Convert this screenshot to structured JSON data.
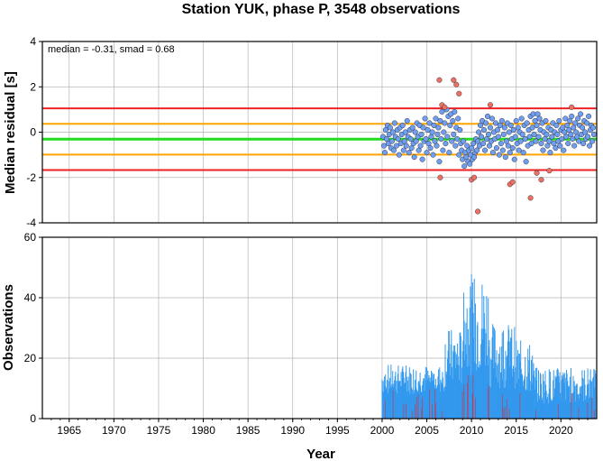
{
  "chart_data": [
    {
      "type": "scatter",
      "title": "Station YUK, phase P, 3548 observations",
      "ylabel": "Median residual [s]",
      "annotation": "median = -0.31, smad = 0.68",
      "xlim": [
        1962,
        2024
      ],
      "ylim": [
        -4,
        4
      ],
      "yticks": [
        "4",
        "2",
        "0",
        "-2",
        "-4"
      ],
      "grid": true,
      "reference_lines": [
        {
          "name": "median",
          "value": -0.31,
          "color": "#22dd22"
        },
        {
          "name": "median+smad",
          "value": 0.37,
          "color": "#ffa500"
        },
        {
          "name": "median-smad",
          "value": -0.99,
          "color": "#ffa500"
        },
        {
          "name": "median+2smad",
          "value": 1.05,
          "color": "#ee2222"
        },
        {
          "name": "median-2smad",
          "value": -1.67,
          "color": "#ee2222"
        }
      ],
      "series": [
        {
          "color": "#6f9ff0",
          "points": [
            [
              2000.1,
              -0.2
            ],
            [
              2000.2,
              -0.6
            ],
            [
              2000.3,
              -0.9
            ],
            [
              2000.4,
              0.1
            ],
            [
              2000.5,
              -0.3
            ],
            [
              2000.6,
              0.3
            ],
            [
              2000.7,
              -0.5
            ],
            [
              2000.8,
              -0.1
            ],
            [
              2000.9,
              0.2
            ],
            [
              2001.0,
              -0.7
            ],
            [
              2001.1,
              -0.4
            ],
            [
              2001.2,
              0.0
            ],
            [
              2001.3,
              -0.8
            ],
            [
              2001.4,
              0.4
            ],
            [
              2001.5,
              -0.2
            ],
            [
              2001.6,
              -0.6
            ],
            [
              2001.7,
              0.1
            ],
            [
              2001.8,
              -0.3
            ],
            [
              2001.9,
              -1.0
            ],
            [
              2002.0,
              0.2
            ],
            [
              2002.1,
              -0.5
            ],
            [
              2002.2,
              -0.1
            ],
            [
              2002.3,
              0.3
            ],
            [
              2002.4,
              -0.8
            ],
            [
              2002.5,
              -0.4
            ],
            [
              2002.6,
              0.0
            ],
            [
              2002.7,
              -0.6
            ],
            [
              2002.8,
              0.5
            ],
            [
              2002.9,
              -0.2
            ],
            [
              2003.0,
              -0.9
            ],
            [
              2003.1,
              0.1
            ],
            [
              2003.2,
              -0.3
            ],
            [
              2003.3,
              -0.7
            ],
            [
              2003.4,
              0.2
            ],
            [
              2003.5,
              -0.5
            ],
            [
              2003.6,
              -1.1
            ],
            [
              2003.7,
              0.0
            ],
            [
              2003.8,
              -0.4
            ],
            [
              2003.9,
              0.4
            ],
            [
              2004.0,
              -0.2
            ],
            [
              2004.1,
              -0.8
            ],
            [
              2004.2,
              0.3
            ],
            [
              2004.3,
              -0.6
            ],
            [
              2004.4,
              -0.1
            ],
            [
              2004.5,
              -1.2
            ],
            [
              2004.6,
              0.2
            ],
            [
              2004.7,
              -0.4
            ],
            [
              2004.8,
              0.6
            ],
            [
              2004.9,
              -0.3
            ],
            [
              2005.0,
              -0.9
            ],
            [
              2005.1,
              0.1
            ],
            [
              2005.2,
              -0.5
            ],
            [
              2005.3,
              0.4
            ],
            [
              2005.4,
              -0.7
            ],
            [
              2005.5,
              -0.2
            ],
            [
              2005.6,
              0.0
            ],
            [
              2005.7,
              -1.0
            ],
            [
              2005.8,
              0.3
            ],
            [
              2005.9,
              -0.4
            ],
            [
              2006.0,
              0.6
            ],
            [
              2006.1,
              -0.6
            ],
            [
              2006.2,
              -0.1
            ],
            [
              2006.3,
              0.2
            ],
            [
              2006.4,
              -1.3
            ],
            [
              2006.5,
              0.5
            ],
            [
              2006.6,
              -0.3
            ],
            [
              2006.7,
              0.9
            ],
            [
              2006.8,
              -0.8
            ],
            [
              2006.9,
              0.0
            ],
            [
              2007.0,
              0.4
            ],
            [
              2007.1,
              -0.5
            ],
            [
              2007.2,
              1.0
            ],
            [
              2007.3,
              -0.2
            ],
            [
              2007.4,
              0.7
            ],
            [
              2007.5,
              -0.9
            ],
            [
              2007.6,
              0.3
            ],
            [
              2007.7,
              0.8
            ],
            [
              2007.8,
              -0.4
            ],
            [
              2007.9,
              0.5
            ],
            [
              2008.0,
              -0.1
            ],
            [
              2008.1,
              0.9
            ],
            [
              2008.2,
              -0.6
            ],
            [
              2008.3,
              0.2
            ],
            [
              2008.4,
              -0.3
            ],
            [
              2008.5,
              0.6
            ],
            [
              2008.6,
              -1.0
            ],
            [
              2008.7,
              0.1
            ],
            [
              2008.8,
              -0.5
            ],
            [
              2008.9,
              -0.8
            ],
            [
              2009.0,
              -1.2
            ],
            [
              2009.1,
              -0.4
            ],
            [
              2009.2,
              -1.5
            ],
            [
              2009.3,
              -0.9
            ],
            [
              2009.4,
              -1.1
            ],
            [
              2009.5,
              -0.6
            ],
            [
              2009.6,
              -1.3
            ],
            [
              2009.7,
              -0.8
            ],
            [
              2009.8,
              -1.4
            ],
            [
              2009.9,
              -1.0
            ],
            [
              2010.0,
              -0.7
            ],
            [
              2010.1,
              -1.2
            ],
            [
              2010.2,
              -0.5
            ],
            [
              2010.3,
              -1.1
            ],
            [
              2010.4,
              -0.9
            ],
            [
              2010.5,
              -0.3
            ],
            [
              2010.6,
              -0.8
            ],
            [
              2010.7,
              -0.4
            ],
            [
              2010.8,
              0.0
            ],
            [
              2010.9,
              -0.6
            ],
            [
              2011.0,
              0.3
            ],
            [
              2011.1,
              -0.2
            ],
            [
              2011.2,
              0.5
            ],
            [
              2011.3,
              -0.5
            ],
            [
              2011.4,
              0.1
            ],
            [
              2011.5,
              -0.8
            ],
            [
              2011.6,
              0.4
            ],
            [
              2011.7,
              -0.3
            ],
            [
              2011.8,
              0.7
            ],
            [
              2011.9,
              -0.1
            ],
            [
              2012.0,
              -0.6
            ],
            [
              2012.1,
              0.2
            ],
            [
              2012.2,
              -0.4
            ],
            [
              2012.3,
              0.6
            ],
            [
              2012.4,
              -0.9
            ],
            [
              2012.5,
              0.0
            ],
            [
              2012.6,
              -0.3
            ],
            [
              2012.7,
              0.4
            ],
            [
              2012.8,
              -0.7
            ],
            [
              2012.9,
              0.1
            ],
            [
              2013.0,
              -0.2
            ],
            [
              2013.1,
              -1.0
            ],
            [
              2013.2,
              0.3
            ],
            [
              2013.3,
              -0.5
            ],
            [
              2013.4,
              0.5
            ],
            [
              2013.5,
              -0.8
            ],
            [
              2013.6,
              -0.1
            ],
            [
              2013.7,
              0.2
            ],
            [
              2013.8,
              -1.1
            ],
            [
              2013.9,
              -0.4
            ],
            [
              2014.0,
              0.4
            ],
            [
              2014.1,
              -0.6
            ],
            [
              2014.2,
              0.0
            ],
            [
              2014.3,
              -0.9
            ],
            [
              2014.4,
              0.3
            ],
            [
              2014.5,
              -0.3
            ],
            [
              2014.6,
              -0.7
            ],
            [
              2014.7,
              0.1
            ],
            [
              2014.8,
              -1.2
            ],
            [
              2014.9,
              -0.2
            ],
            [
              2015.0,
              0.5
            ],
            [
              2015.1,
              -0.5
            ],
            [
              2015.2,
              0.2
            ],
            [
              2015.3,
              -0.8
            ],
            [
              2015.4,
              0.0
            ],
            [
              2015.5,
              -0.4
            ],
            [
              2015.6,
              0.6
            ],
            [
              2015.7,
              -0.1
            ],
            [
              2015.8,
              -0.9
            ],
            [
              2015.9,
              0.3
            ],
            [
              2016.0,
              -0.3
            ],
            [
              2016.1,
              -1.3
            ],
            [
              2016.2,
              0.4
            ],
            [
              2016.3,
              -0.6
            ],
            [
              2016.4,
              0.1
            ],
            [
              2016.5,
              -0.2
            ],
            [
              2016.6,
              0.7
            ],
            [
              2016.7,
              -0.5
            ],
            [
              2016.8,
              0.2
            ],
            [
              2016.9,
              0.8
            ],
            [
              2017.0,
              -0.1
            ],
            [
              2017.1,
              0.5
            ],
            [
              2017.2,
              -0.4
            ],
            [
              2017.3,
              0.3
            ],
            [
              2017.4,
              0.8
            ],
            [
              2017.5,
              -0.2
            ],
            [
              2017.6,
              0.6
            ],
            [
              2017.7,
              0.1
            ],
            [
              2017.8,
              -0.5
            ],
            [
              2017.9,
              0.4
            ],
            [
              2018.0,
              -0.8
            ],
            [
              2018.1,
              0.0
            ],
            [
              2018.2,
              -0.3
            ],
            [
              2018.3,
              0.5
            ],
            [
              2018.4,
              -0.1
            ],
            [
              2018.5,
              -0.6
            ],
            [
              2018.6,
              0.2
            ],
            [
              2018.7,
              -0.4
            ],
            [
              2018.8,
              -0.9
            ],
            [
              2018.9,
              0.1
            ],
            [
              2019.0,
              -0.2
            ],
            [
              2019.1,
              0.4
            ],
            [
              2019.2,
              -0.5
            ],
            [
              2019.3,
              0.0
            ],
            [
              2019.4,
              -0.7
            ],
            [
              2019.5,
              0.3
            ],
            [
              2019.6,
              -0.1
            ],
            [
              2019.7,
              -0.4
            ],
            [
              2019.8,
              0.5
            ],
            [
              2019.9,
              -0.6
            ],
            [
              2020.0,
              0.1
            ],
            [
              2020.1,
              -0.3
            ],
            [
              2020.2,
              0.2
            ],
            [
              2020.3,
              -0.8
            ],
            [
              2020.4,
              0.0
            ],
            [
              2020.5,
              0.6
            ],
            [
              2020.6,
              -0.2
            ],
            [
              2020.7,
              0.3
            ],
            [
              2020.8,
              -0.5
            ],
            [
              2020.9,
              0.1
            ],
            [
              2021.0,
              0.5
            ],
            [
              2021.1,
              -0.1
            ],
            [
              2021.2,
              0.7
            ],
            [
              2021.3,
              -0.3
            ],
            [
              2021.4,
              0.2
            ],
            [
              2021.5,
              -0.6
            ],
            [
              2021.6,
              0.4
            ],
            [
              2021.7,
              0.0
            ],
            [
              2021.8,
              -0.2
            ],
            [
              2021.9,
              0.6
            ],
            [
              2022.0,
              -0.4
            ],
            [
              2022.1,
              0.3
            ],
            [
              2022.2,
              0.8
            ],
            [
              2022.3,
              -0.1
            ],
            [
              2022.4,
              0.2
            ],
            [
              2022.5,
              -0.5
            ],
            [
              2022.6,
              0.5
            ],
            [
              2022.7,
              0.0
            ],
            [
              2022.8,
              -0.3
            ],
            [
              2022.9,
              0.4
            ],
            [
              2023.0,
              -0.2
            ],
            [
              2023.1,
              0.7
            ],
            [
              2023.2,
              -0.6
            ],
            [
              2023.3,
              0.1
            ],
            [
              2023.4,
              0.3
            ],
            [
              2023.5,
              -0.4
            ],
            [
              2023.6,
              0.2
            ],
            [
              2023.7,
              -0.1
            ]
          ]
        },
        {
          "color": "#f07060",
          "points": [
            [
              2006.4,
              2.3
            ],
            [
              2006.7,
              1.2
            ],
            [
              2007.0,
              1.1
            ],
            [
              2008.0,
              2.3
            ],
            [
              2008.3,
              2.1
            ],
            [
              2008.6,
              1.7
            ],
            [
              2006.5,
              -2.0
            ],
            [
              2010.0,
              -2.1
            ],
            [
              2010.3,
              -2.0
            ],
            [
              2010.7,
              -3.5
            ],
            [
              2012.1,
              1.2
            ],
            [
              2014.3,
              -2.3
            ],
            [
              2014.6,
              -2.2
            ],
            [
              2016.6,
              -2.9
            ],
            [
              2017.3,
              -1.8
            ],
            [
              2017.8,
              -2.1
            ],
            [
              2018.7,
              -1.7
            ],
            [
              2021.2,
              1.1
            ]
          ]
        }
      ]
    },
    {
      "type": "bar",
      "xlabel": "Year",
      "ylabel": "Observations",
      "xlim": [
        1962,
        2024
      ],
      "ylim": [
        0,
        60
      ],
      "xticks": [
        "1965",
        "1970",
        "1975",
        "1980",
        "1985",
        "1990",
        "1995",
        "2000",
        "2005",
        "2010",
        "2015",
        "2020"
      ],
      "yticks": [
        "60",
        "40",
        "20",
        "0"
      ],
      "grid": true,
      "series": [
        {
          "name": "total",
          "color": "#3399ee"
        },
        {
          "name": "outliers",
          "color": "#cc3344"
        }
      ]
    }
  ]
}
